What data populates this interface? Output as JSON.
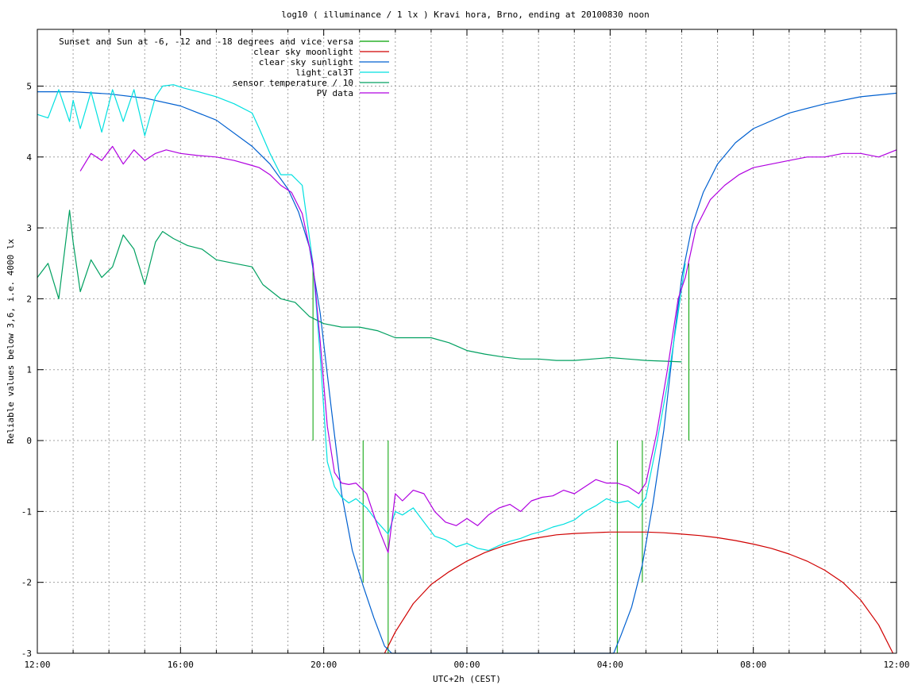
{
  "chart_data": {
    "type": "line",
    "title": "log10 ( illuminance / 1 lx ) Kravi hora, Brno, ending at 20100830 noon",
    "xlabel": "UTC+2h (CEST)",
    "ylabel": "Reliable values below 3,6, i.e. 4000 lx",
    "xlim": [
      "12:00",
      "12:00 (+1 day)"
    ],
    "ylim": [
      -3,
      5.8
    ],
    "x_ticks": [
      "12:00",
      "16:00",
      "20:00",
      "00:00",
      "04:00",
      "08:00",
      "12:00"
    ],
    "x_tick_hours": [
      0,
      4,
      8,
      12,
      16,
      20,
      24
    ],
    "x_minor_tick_hours": [
      1,
      2,
      3,
      5,
      6,
      7,
      9,
      10,
      11,
      13,
      14,
      15,
      17,
      18,
      19,
      21,
      22,
      23
    ],
    "y_ticks": [
      "-3",
      "-2",
      "-1",
      "0",
      "1",
      "2",
      "3",
      "4",
      "5"
    ],
    "y_tick_values": [
      -3,
      -2,
      -1,
      0,
      1,
      2,
      3,
      4,
      5
    ],
    "grid": true,
    "legend_position": "top-left",
    "x_unit": "hours after 12:00 noon (UTC+2h)",
    "series": [
      {
        "name": "Sunset and Sun at -6, -12 and -18 degrees and vice versa",
        "color": "#00a000",
        "kind": "vertical_markers",
        "markers": [
          {
            "x": 7.7,
            "y0": 0,
            "y1": 2.5
          },
          {
            "x": 9.1,
            "y0": 0,
            "y1": -2.0
          },
          {
            "x": 9.8,
            "y0": 0,
            "y1": -3.0
          },
          {
            "x": 16.2,
            "y0": 0,
            "y1": -3.0
          },
          {
            "x": 16.9,
            "y0": 0,
            "y1": -2.0
          },
          {
            "x": 18.2,
            "y0": 0,
            "y1": 2.5
          }
        ]
      },
      {
        "name": "clear sky moonlight",
        "color": "#d00000",
        "x": [
          9.7,
          10.0,
          10.5,
          11.0,
          11.5,
          12.0,
          12.5,
          13.0,
          13.5,
          14.0,
          14.5,
          15.0,
          15.5,
          16.0,
          16.5,
          17.0,
          17.5,
          18.0,
          18.5,
          19.0,
          19.5,
          20.0,
          20.5,
          21.0,
          21.5,
          22.0,
          22.5,
          23.0,
          23.5,
          23.9
        ],
        "values": [
          -3.0,
          -2.7,
          -2.3,
          -2.03,
          -1.85,
          -1.7,
          -1.58,
          -1.49,
          -1.42,
          -1.37,
          -1.33,
          -1.31,
          -1.3,
          -1.29,
          -1.29,
          -1.29,
          -1.3,
          -1.32,
          -1.34,
          -1.37,
          -1.41,
          -1.46,
          -1.52,
          -1.6,
          -1.7,
          -1.83,
          -2.0,
          -2.25,
          -2.6,
          -3.0
        ]
      },
      {
        "name": "clear sky sunlight",
        "color": "#0060d0",
        "x": [
          0,
          1,
          2,
          3,
          4,
          5,
          6,
          6.5,
          7.0,
          7.3,
          7.6,
          7.9,
          8.2,
          8.5,
          8.8,
          9.1,
          9.4,
          9.7,
          9.9,
          16.1,
          16.3,
          16.6,
          16.9,
          17.2,
          17.5,
          17.8,
          18.0,
          18.3,
          18.6,
          19.0,
          19.5,
          20,
          21,
          22,
          23,
          24
        ],
        "values": [
          4.92,
          4.92,
          4.89,
          4.83,
          4.72,
          4.52,
          4.15,
          3.9,
          3.55,
          3.22,
          2.73,
          1.8,
          0.5,
          -0.75,
          -1.55,
          -2.05,
          -2.5,
          -2.9,
          -3.0,
          -3.0,
          -2.75,
          -2.35,
          -1.75,
          -0.88,
          0.15,
          1.5,
          2.3,
          3.05,
          3.5,
          3.9,
          4.2,
          4.4,
          4.62,
          4.75,
          4.85,
          4.9
        ]
      },
      {
        "name": "light_cal3T",
        "color": "#00e0e0",
        "x": [
          0,
          0.3,
          0.6,
          0.9,
          1.0,
          1.2,
          1.5,
          1.8,
          2.1,
          2.4,
          2.7,
          3.0,
          3.3,
          3.5,
          3.8,
          4.1,
          4.5,
          5.0,
          5.5,
          6.0,
          6.2,
          6.5,
          6.8,
          7.1,
          7.4,
          7.7,
          7.9,
          8.1,
          8.3,
          8.5,
          8.7,
          8.9,
          9.2,
          9.5,
          9.8,
          10.0,
          10.2,
          10.5,
          10.8,
          11.1,
          11.4,
          11.7,
          12.0,
          12.3,
          12.6,
          12.9,
          13.2,
          13.5,
          13.8,
          14.1,
          14.4,
          14.7,
          15.0,
          15.3,
          15.6,
          15.9,
          16.2,
          16.5,
          16.8,
          17.0,
          17.3,
          17.6,
          17.9,
          18.1
        ],
        "values": [
          4.6,
          4.55,
          4.95,
          4.5,
          4.8,
          4.4,
          4.92,
          4.35,
          4.95,
          4.5,
          4.95,
          4.3,
          4.85,
          5.0,
          5.02,
          4.97,
          4.92,
          4.85,
          4.75,
          4.62,
          4.4,
          4.05,
          3.75,
          3.75,
          3.6,
          2.5,
          1.2,
          -0.3,
          -0.65,
          -0.8,
          -0.88,
          -0.82,
          -0.95,
          -1.15,
          -1.32,
          -1.0,
          -1.05,
          -0.95,
          -1.15,
          -1.35,
          -1.4,
          -1.5,
          -1.45,
          -1.52,
          -1.55,
          -1.48,
          -1.42,
          -1.38,
          -1.32,
          -1.28,
          -1.22,
          -1.18,
          -1.12,
          -1.0,
          -0.92,
          -0.82,
          -0.88,
          -0.85,
          -0.95,
          -0.8,
          -0.05,
          0.8,
          1.8,
          2.5
        ]
      },
      {
        "name": "sensor temperature / 10",
        "color": "#00a060",
        "x": [
          0,
          0.3,
          0.6,
          0.9,
          1.0,
          1.2,
          1.5,
          1.8,
          2.1,
          2.4,
          2.7,
          3.0,
          3.3,
          3.5,
          3.8,
          4.2,
          4.6,
          5.0,
          5.5,
          6.0,
          6.3,
          6.8,
          7.2,
          7.6,
          8.0,
          8.5,
          9.0,
          9.5,
          10.0,
          10.5,
          11.0,
          11.5,
          12.0,
          12.5,
          13.0,
          13.5,
          14.0,
          14.5,
          15.0,
          15.5,
          16.0,
          16.5,
          17.0,
          17.5,
          18.0
        ],
        "values": [
          2.3,
          2.5,
          2.0,
          3.25,
          2.8,
          2.1,
          2.55,
          2.3,
          2.45,
          2.9,
          2.7,
          2.2,
          2.8,
          2.95,
          2.85,
          2.75,
          2.7,
          2.55,
          2.5,
          2.45,
          2.2,
          2.0,
          1.95,
          1.75,
          1.65,
          1.6,
          1.6,
          1.55,
          1.45,
          1.45,
          1.45,
          1.38,
          1.27,
          1.22,
          1.18,
          1.15,
          1.15,
          1.13,
          1.13,
          1.15,
          1.17,
          1.15,
          1.13,
          1.12,
          1.11
        ]
      },
      {
        "name": "PV data",
        "color": "#b000e0",
        "x": [
          1.2,
          1.5,
          1.8,
          2.1,
          2.4,
          2.7,
          3.0,
          3.3,
          3.6,
          4.0,
          4.5,
          5.0,
          5.5,
          6.0,
          6.2,
          6.5,
          6.8,
          7.1,
          7.4,
          7.7,
          7.9,
          8.1,
          8.3,
          8.5,
          8.7,
          8.9,
          9.2,
          9.5,
          9.8,
          10.0,
          10.2,
          10.5,
          10.8,
          11.1,
          11.4,
          11.7,
          12.0,
          12.3,
          12.6,
          12.9,
          13.2,
          13.5,
          13.8,
          14.1,
          14.4,
          14.7,
          15.0,
          15.3,
          15.6,
          15.9,
          16.2,
          16.5,
          16.8,
          17.0,
          17.3,
          17.6,
          17.9,
          18.1,
          18.4,
          18.8,
          19.2,
          19.6,
          20.0,
          20.5,
          21.0,
          21.5,
          22.0,
          22.5,
          23.0,
          23.5,
          24.0
        ],
        "values": [
          3.8,
          4.05,
          3.95,
          4.15,
          3.9,
          4.1,
          3.95,
          4.05,
          4.1,
          4.05,
          4.02,
          4.0,
          3.95,
          3.88,
          3.85,
          3.75,
          3.6,
          3.5,
          3.2,
          2.5,
          1.4,
          0.2,
          -0.45,
          -0.6,
          -0.62,
          -0.6,
          -0.75,
          -1.2,
          -1.58,
          -0.75,
          -0.85,
          -0.7,
          -0.75,
          -1.0,
          -1.15,
          -1.2,
          -1.1,
          -1.2,
          -1.05,
          -0.95,
          -0.9,
          -1.0,
          -0.85,
          -0.8,
          -0.78,
          -0.7,
          -0.75,
          -0.65,
          -0.55,
          -0.6,
          -0.6,
          -0.65,
          -0.75,
          -0.6,
          0.1,
          1.0,
          2.0,
          2.3,
          3.0,
          3.4,
          3.6,
          3.75,
          3.85,
          3.9,
          3.95,
          4.0,
          4.0,
          4.05,
          4.05,
          4.0,
          4.1
        ]
      }
    ]
  }
}
